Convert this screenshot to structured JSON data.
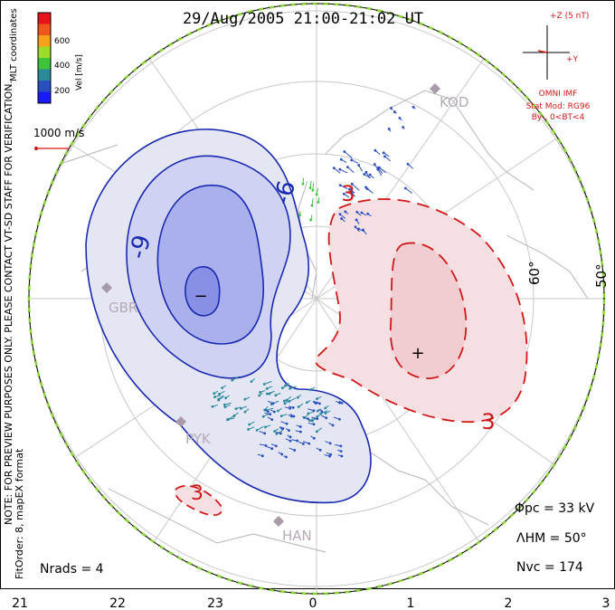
{
  "title": "29/Aug/2005 21:00-21:02 UT",
  "colorbar": {
    "ticks": [
      "600",
      "400",
      "200"
    ],
    "unit_label": "Vel [m/s]",
    "colors": [
      "#e8121a",
      "#f0561a",
      "#f5a21a",
      "#9fdc2a",
      "#3ec43a",
      "#2a8a9a",
      "#2a4fc0",
      "#1a1aff"
    ]
  },
  "coord_label": "MLT coordinates",
  "reference_vector": {
    "label": "1000 m/s",
    "color": "#d01818"
  },
  "imf_panel": {
    "title": "+Z (5 nT)",
    "y_label": "+Y",
    "lines": [
      "OMNI IMF",
      "Stat Mod: RG96",
      "By-, 0<BT<4"
    ],
    "color": "#d01818"
  },
  "stations": [
    "KOD",
    "GBR",
    "PYK",
    "HAN"
  ],
  "latitude_labels": [
    "60°",
    "50°"
  ],
  "contours": {
    "negative_label": "-9",
    "negative_label_2": "-6",
    "positive_label": "3",
    "positive_label_2": "3",
    "small_label": "3",
    "neg_color": "#1a2ab0",
    "pos_color": "#d01818",
    "min_marker": "−",
    "max_marker": "+"
  },
  "side_note": {
    "line1": "NOTE: FOR PREVIEW PURPOSES ONLY. PLEASE CONTACT VT-SD STAFF FOR VERIFICATION.",
    "line2": "FitOrder: 8, mapEX format"
  },
  "stats": {
    "phi_pc": "Φpc = 33 kV",
    "lambda_hm": "ΛHM = 50°",
    "n_vc": "Nvc = 174",
    "n_rads": "Nrads = 4"
  },
  "mlt_axis": [
    "21",
    "22",
    "23",
    "0",
    "1",
    "2",
    "3"
  ]
}
